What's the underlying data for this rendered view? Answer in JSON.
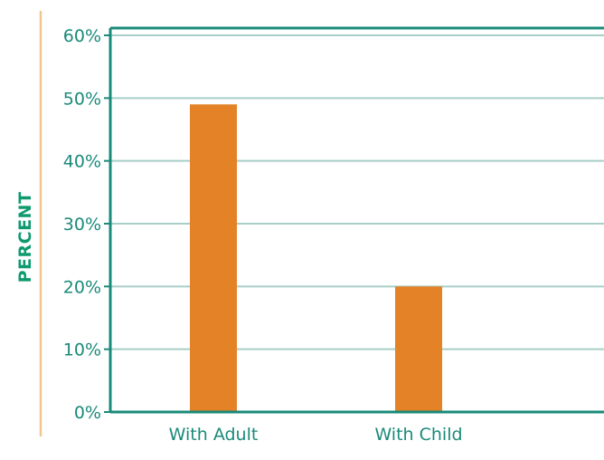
{
  "chart_data": {
    "type": "bar",
    "categories": [
      "With Adult",
      "With Child"
    ],
    "values": [
      49,
      20
    ],
    "title": "",
    "xlabel": "",
    "ylabel": "PERCENT",
    "ylim": [
      0,
      60
    ],
    "yticks": [
      "0%",
      "10%",
      "20%",
      "30%",
      "40%",
      "50%",
      "60%"
    ],
    "grid": true,
    "legend": "none"
  },
  "colors": {
    "bar": "#e38227",
    "axis": "#1a8a7a",
    "grid": "#a8cfc7",
    "text": "#1a8a7a",
    "ylabel": "#0e9a6e",
    "accent_line": "#f0c690"
  }
}
